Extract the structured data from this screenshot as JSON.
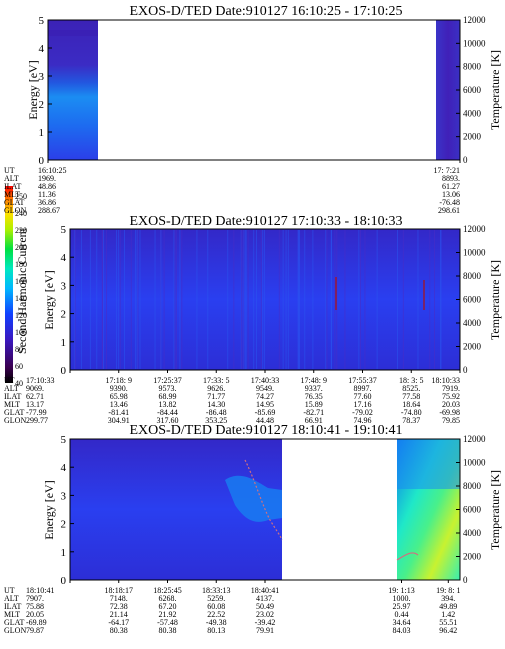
{
  "chart_data": {
    "type": "heatmap",
    "colorbar": {
      "label": "Second Harmonic Current",
      "ticks": [
        "40",
        "60",
        "80",
        "100",
        "120",
        "140",
        "160",
        "180",
        "200",
        "220",
        "240",
        "250"
      ]
    },
    "panels": [
      {
        "title": "EXOS-D/TED   Date:910127   16:10:25 - 17:10:25",
        "ylabel": "Energy [eV]",
        "ylabel2": "Temperature [K]",
        "ylim": [
          0,
          5
        ],
        "yticks": [
          "0",
          "1",
          "2",
          "3",
          "4",
          "5"
        ],
        "y2ticks": [
          "0",
          "2000",
          "4000",
          "6000",
          "8000",
          "10000",
          "12000"
        ],
        "data_segments": [
          [
            0.0,
            0.07
          ],
          [
            0.93,
            1.0
          ]
        ],
        "ephemeris": {
          "labels": [
            "UT",
            "ALT",
            "ILAT",
            "MLT",
            "GLAT",
            "GLON"
          ],
          "columns": [
            {
              "pos": 0.0,
              "values": [
                "16:10:25",
                "1969.",
                "48.86",
                "11.36",
                "36.86",
                "288.67"
              ]
            },
            {
              "pos": 1.0,
              "values": [
                "17: 7:21",
                "8893.",
                "61.27",
                "13.06",
                "-76.48",
                "298.61"
              ]
            }
          ]
        }
      },
      {
        "title": "EXOS-D/TED   Date:910127   17:10:33 - 18:10:33",
        "ylabel": "Energy [eV]",
        "ylabel2": "Temperature [K]",
        "ylim": [
          0,
          5
        ],
        "yticks": [
          "0",
          "1",
          "2",
          "3",
          "4",
          "5"
        ],
        "y2ticks": [
          "0",
          "2000",
          "4000",
          "6000",
          "8000",
          "10000",
          "12000"
        ],
        "data_segments": [
          [
            0.0,
            1.0
          ]
        ],
        "ephemeris": {
          "labels": [
            "UT",
            "ALT",
            "ILAT",
            "MLT",
            "GLAT",
            "GLON"
          ],
          "columns": [
            {
              "pos": 0.0,
              "values": [
                "17:10:33",
                "9069.",
                "62.71",
                "13.17",
                "-77.99",
                "299.77"
              ]
            },
            {
              "pos": 0.125,
              "values": [
                "17:18: 9",
                "9390.",
                "65.98",
                "13.46",
                "-81.41",
                "304.91"
              ]
            },
            {
              "pos": 0.25,
              "values": [
                "17:25:37",
                "9573.",
                "68.99",
                "13.82",
                "-84.44",
                "317.60"
              ]
            },
            {
              "pos": 0.375,
              "values": [
                "17:33: 5",
                "9626.",
                "71.77",
                "14.30",
                "-86.48",
                "353.25"
              ]
            },
            {
              "pos": 0.5,
              "values": [
                "17:40:33",
                "9549.",
                "74.27",
                "14.95",
                "-85.69",
                "44.48"
              ]
            },
            {
              "pos": 0.625,
              "values": [
                "17:48: 9",
                "9337.",
                "76.35",
                "15.89",
                "-82.71",
                "66.91"
              ]
            },
            {
              "pos": 0.75,
              "values": [
                "17:55:37",
                "8997.",
                "77.60",
                "17.16",
                "-79.02",
                "74.96"
              ]
            },
            {
              "pos": 0.875,
              "values": [
                "18: 3: 5",
                "8525.",
                "77.58",
                "18.64",
                "-74.80",
                "78.37"
              ]
            },
            {
              "pos": 1.0,
              "values": [
                "18:10:33",
                "7919.",
                "75.92",
                "20.03",
                "-69.98",
                "79.85"
              ]
            }
          ]
        }
      },
      {
        "title": "EXOS-D/TED   Date:910127   18:10:41 - 19:10:41",
        "ylabel": "Energy [eV]",
        "ylabel2": "Temperature [K]",
        "ylim": [
          0,
          5
        ],
        "yticks": [
          "0",
          "1",
          "2",
          "3",
          "4",
          "5"
        ],
        "y2ticks": [
          "0",
          "2000",
          "4000",
          "6000",
          "8000",
          "10000",
          "12000"
        ],
        "data_segments": [
          [
            0.0,
            0.54
          ],
          [
            0.85,
            1.0
          ]
        ],
        "ephemeris": {
          "labels": [
            "UT",
            "ALT",
            "ILAT",
            "MLT",
            "GLAT",
            "GLON"
          ],
          "columns": [
            {
              "pos": 0.0,
              "values": [
                "18:10:41",
                "7907.",
                "75.88",
                "20.05",
                "-69.89",
                "79.87"
              ]
            },
            {
              "pos": 0.125,
              "values": [
                "18:18:17",
                "7148.",
                "72.38",
                "21.14",
                "-64.17",
                "80.38"
              ]
            },
            {
              "pos": 0.25,
              "values": [
                "18:25:45",
                "6268.",
                "67.20",
                "21.92",
                "-57.48",
                "80.38"
              ]
            },
            {
              "pos": 0.375,
              "values": [
                "18:33:13",
                "5259.",
                "60.08",
                "22.52",
                "-49.38",
                "80.13"
              ]
            },
            {
              "pos": 0.5,
              "values": [
                "18:40:41",
                "4137.",
                "50.49",
                "23.02",
                "-39.42",
                "79.91"
              ]
            },
            {
              "pos": 0.85,
              "values": [
                "19: 1:13",
                "1000.",
                "25.97",
                "0.44",
                "34.64",
                "84.03"
              ]
            },
            {
              "pos": 0.97,
              "values": [
                "19: 8: 1",
                "394.",
                "49.89",
                "1.42",
                "55.51",
                "96.42"
              ]
            }
          ]
        }
      }
    ]
  }
}
